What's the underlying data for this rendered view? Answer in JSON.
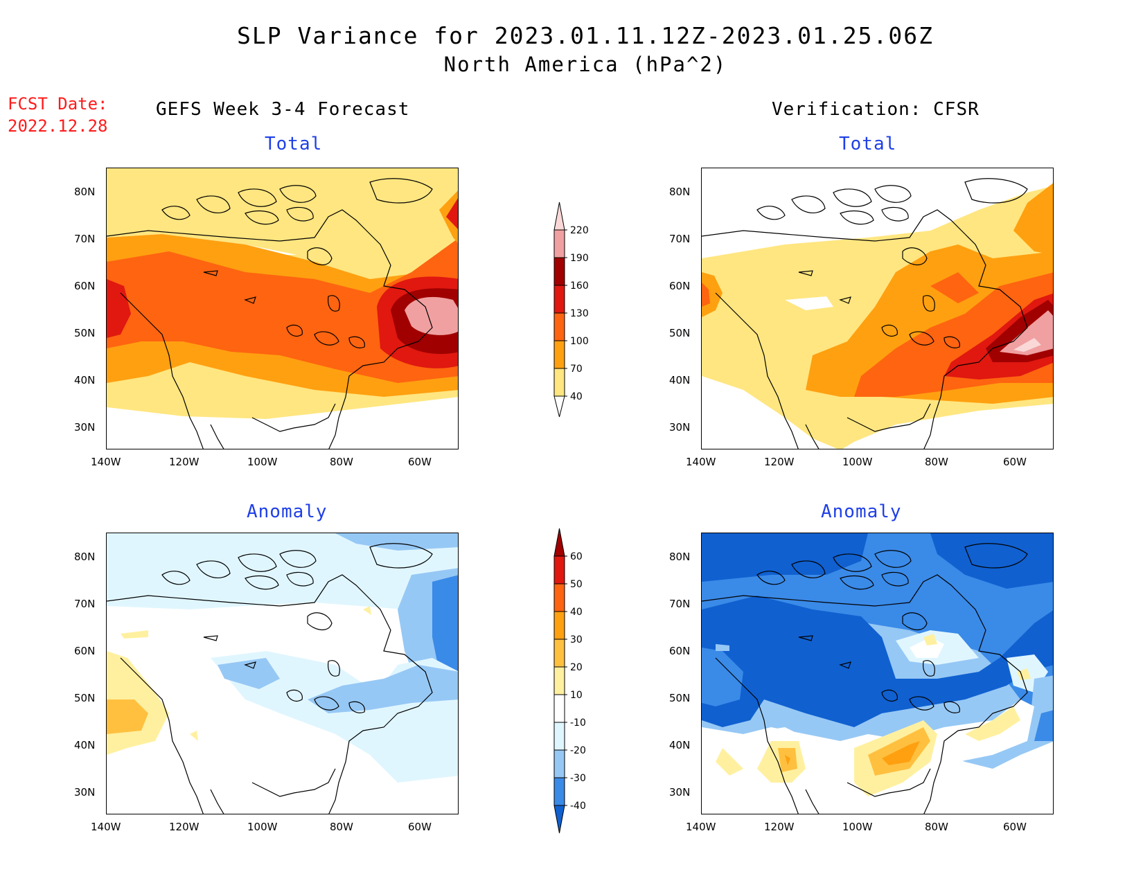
{
  "header": {
    "title_line1": "SLP Variance for 2023.01.11.12Z-2023.01.25.06Z",
    "title_line2": "North America (hPa^2)",
    "fcst_label": "FCST Date:",
    "fcst_date": "2022.12.28",
    "left_column_title": "GEFS Week 3-4 Forecast",
    "right_column_title": "Verification: CFSR"
  },
  "panels": {
    "top_left_title": "Total",
    "top_right_title": "Total",
    "bottom_left_title": "Anomaly",
    "bottom_right_title": "Anomaly"
  },
  "axes": {
    "lat_labels": [
      "80N",
      "70N",
      "60N",
      "50N",
      "40N",
      "30N"
    ],
    "lon_labels": [
      "140W",
      "120W",
      "100W",
      "80W",
      "60W"
    ]
  },
  "colorbar_total": {
    "levels": [
      "40",
      "70",
      "100",
      "130",
      "160",
      "190",
      "220"
    ],
    "colors": [
      "#ffe680",
      "#ffa010",
      "#ff6410",
      "#e01810",
      "#a00000",
      "#f0a0a0",
      "#fbd8d8"
    ]
  },
  "colorbar_anomaly": {
    "levels": [
      "-40",
      "-30",
      "-20",
      "-10",
      "10",
      "20",
      "30",
      "40",
      "50",
      "60"
    ],
    "colors": [
      "#1060d0",
      "#3a8ae8",
      "#96c8f5",
      "#e0f6ff",
      "#ffffff",
      "#fff0a0",
      "#ffc040",
      "#ffa010",
      "#ff6410",
      "#e01810",
      "#a00000"
    ]
  }
}
